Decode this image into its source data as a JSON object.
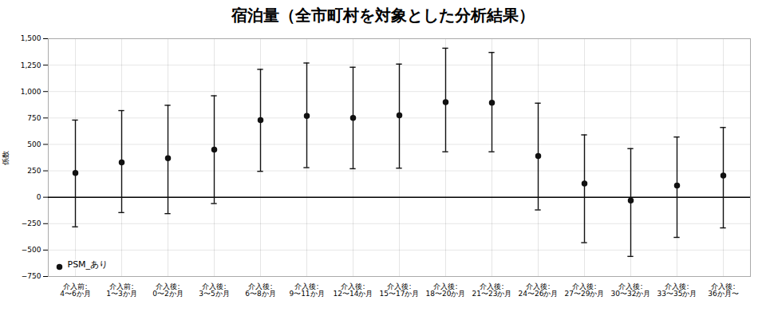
{
  "chart_data": {
    "type": "scatter",
    "title": "宿泊量（全市町村を対象とした分析結果）",
    "ylabel": "係数",
    "categories": [
      "介入前:\n4〜6か月",
      "介入前:\n1〜3か月",
      "介入後:\n0〜2か月",
      "介入後:\n3〜5か月",
      "介入後:\n6〜8か月",
      "介入後:\n9〜11か月",
      "介入後:\n12〜14か月",
      "介入後:\n15〜17か月",
      "介入後:\n18〜20か月",
      "介入後:\n21〜23か月",
      "介入後:\n24〜26か月",
      "介入後:\n27〜29か月",
      "介入後:\n30〜32か月",
      "介入後:\n33〜35か月",
      "介入後:\n36か月〜"
    ],
    "series": [
      {
        "name": "PSM_あり",
        "color": "#111111",
        "marker": "circle",
        "values": [
          230,
          330,
          370,
          450,
          730,
          770,
          750,
          775,
          900,
          895,
          390,
          130,
          -30,
          110,
          205
        ],
        "ci_upper": [
          730,
          820,
          870,
          960,
          1210,
          1270,
          1230,
          1260,
          1410,
          1370,
          890,
          590,
          460,
          570,
          660
        ],
        "ci_lower": [
          -280,
          -145,
          -155,
          -60,
          245,
          280,
          270,
          275,
          430,
          430,
          -120,
          -430,
          -560,
          -380,
          -290
        ]
      }
    ],
    "ylim": [
      -750,
      1500
    ],
    "yticks": [
      -750,
      -500,
      -250,
      0,
      250,
      500,
      750,
      1000,
      1250,
      1500
    ],
    "grid": true,
    "legend": "lower left"
  }
}
